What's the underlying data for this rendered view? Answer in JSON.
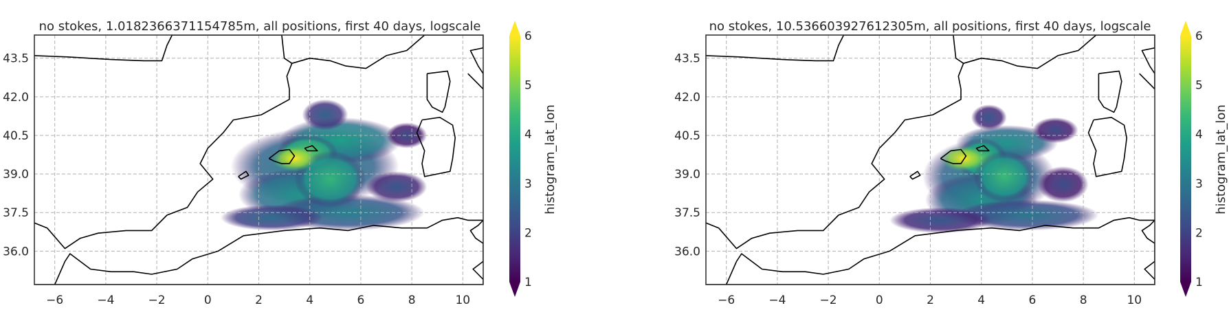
{
  "figure": {
    "colormap": "viridis",
    "land_outline_color": "#000000",
    "grid": "dashed",
    "grid_color": "#b0b0b0"
  },
  "chart_data": [
    {
      "type": "heatmap",
      "projection": "map",
      "title": "no stokes, 1.0182366371154785m, all positions, first 40 days, logscale",
      "xticks": [
        "−6",
        "−4",
        "−2",
        "0",
        "2",
        "4",
        "6",
        "8",
        "10"
      ],
      "yticks": [
        "36.0",
        "37.5",
        "39.0",
        "40.5",
        "42.0",
        "43.5"
      ],
      "xtick_values": [
        -6,
        -4,
        -2,
        0,
        2,
        4,
        6,
        8,
        10
      ],
      "ytick_values": [
        36.0,
        37.5,
        39.0,
        40.5,
        42.0,
        43.5
      ],
      "xlim": [
        -6.8,
        10.8
      ],
      "ylim": [
        34.7,
        44.4
      ],
      "colorbar": {
        "label": "histogram_lat_lon",
        "ticks": [
          "1",
          "2",
          "3",
          "4",
          "5",
          "6"
        ],
        "tick_values": [
          1,
          2,
          3,
          4,
          5,
          6
        ],
        "range": [
          1,
          6
        ],
        "extend": "both"
      },
      "hotspot": {
        "lon": 3.4,
        "lat": 39.6,
        "value": 6
      },
      "blobs": [
        {
          "lon": 4.2,
          "lat": 39.3,
          "rlon": 3.3,
          "rlat": 1.5,
          "value": 3.4
        },
        {
          "lon": 5.2,
          "lat": 40.3,
          "rlon": 2.4,
          "rlat": 0.9,
          "value": 3.8
        },
        {
          "lon": 3.6,
          "lat": 38.2,
          "rlon": 2.4,
          "rlat": 1.0,
          "value": 3.6
        },
        {
          "lon": 5.5,
          "lat": 37.5,
          "rlon": 3.0,
          "rlat": 0.7,
          "value": 3.2
        },
        {
          "lon": 2.5,
          "lat": 37.3,
          "rlon": 2.0,
          "rlat": 0.5,
          "value": 2.8
        },
        {
          "lon": 7.4,
          "lat": 38.5,
          "rlon": 1.2,
          "rlat": 0.6,
          "value": 2.4
        },
        {
          "lon": 7.8,
          "lat": 40.5,
          "rlon": 0.8,
          "rlat": 0.5,
          "value": 2.2
        },
        {
          "lon": 4.6,
          "lat": 41.3,
          "rlon": 0.9,
          "rlat": 0.6,
          "value": 2.6
        },
        {
          "lon": 3.9,
          "lat": 39.8,
          "rlon": 1.2,
          "rlat": 0.7,
          "value": 4.8
        },
        {
          "lon": 4.8,
          "lat": 38.8,
          "rlon": 1.4,
          "rlat": 1.1,
          "value": 4.3
        }
      ]
    },
    {
      "type": "heatmap",
      "projection": "map",
      "title": "no stokes, 10.536603927612305m, all positions, first 40 days, logscale",
      "xticks": [
        "−6",
        "−4",
        "−2",
        "0",
        "2",
        "4",
        "6",
        "8",
        "10"
      ],
      "yticks": [
        "36.0",
        "37.5",
        "39.0",
        "40.5",
        "42.0",
        "43.5"
      ],
      "xtick_values": [
        -6,
        -4,
        -2,
        0,
        2,
        4,
        6,
        8,
        10
      ],
      "ytick_values": [
        36.0,
        37.5,
        39.0,
        40.5,
        42.0,
        43.5
      ],
      "xlim": [
        -6.8,
        10.8
      ],
      "ylim": [
        34.7,
        44.4
      ],
      "colorbar": {
        "label": "histogram_lat_lon",
        "ticks": [
          "1",
          "2",
          "3",
          "4",
          "5",
          "6"
        ],
        "tick_values": [
          1,
          2,
          3,
          4,
          5,
          6
        ],
        "range": [
          1,
          6
        ],
        "extend": "both"
      },
      "hotspot": {
        "lon": 3.3,
        "lat": 39.6,
        "value": 6
      },
      "blobs": [
        {
          "lon": 4.3,
          "lat": 38.9,
          "rlon": 2.6,
          "rlat": 1.5,
          "value": 3.4
        },
        {
          "lon": 5.0,
          "lat": 40.2,
          "rlon": 2.0,
          "rlat": 0.7,
          "value": 3.6
        },
        {
          "lon": 4.0,
          "lat": 38.0,
          "rlon": 2.2,
          "rlat": 1.0,
          "value": 3.5
        },
        {
          "lon": 5.8,
          "lat": 37.4,
          "rlon": 2.8,
          "rlat": 0.6,
          "value": 3.0
        },
        {
          "lon": 2.4,
          "lat": 37.2,
          "rlon": 2.0,
          "rlat": 0.5,
          "value": 2.4
        },
        {
          "lon": 7.2,
          "lat": 38.6,
          "rlon": 1.0,
          "rlat": 0.7,
          "value": 2.2
        },
        {
          "lon": 6.9,
          "lat": 40.7,
          "rlon": 0.9,
          "rlat": 0.5,
          "value": 2.2
        },
        {
          "lon": 4.3,
          "lat": 41.2,
          "rlon": 0.7,
          "rlat": 0.5,
          "value": 2.4
        },
        {
          "lon": 4.0,
          "lat": 39.6,
          "rlon": 1.0,
          "rlat": 0.8,
          "value": 4.6
        },
        {
          "lon": 4.9,
          "lat": 38.9,
          "rlon": 1.2,
          "rlat": 1.0,
          "value": 4.4
        }
      ]
    }
  ]
}
